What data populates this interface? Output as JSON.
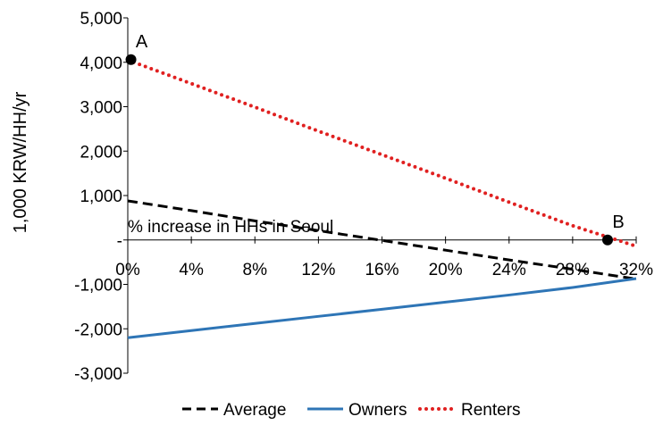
{
  "chart_data": {
    "type": "line",
    "ylabel": "1,000 KRW/HH/yr",
    "xlabel": "% increase in HHs in Seoul",
    "xlim": [
      0,
      32
    ],
    "ylim": [
      -3000,
      5000
    ],
    "x_ticks": [
      0,
      4,
      8,
      12,
      16,
      20,
      24,
      28,
      32
    ],
    "x_tick_labels": [
      "0%",
      "4%",
      "8%",
      "12%",
      "16%",
      "20%",
      "24%",
      "28%",
      "32%"
    ],
    "y_ticks": [
      5000,
      4000,
      3000,
      2000,
      1000,
      0,
      -1000,
      -2000,
      -3000
    ],
    "y_tick_labels": [
      "5,000",
      "4,000",
      "3,000",
      "2,000",
      "1,000",
      "-",
      "-1,000",
      "-2,000",
      "-3,000"
    ],
    "grid": false,
    "legend_position": "bottom",
    "colors": {
      "Average": "#000000",
      "Owners": "#2e75b6",
      "Renters": "#e02020"
    },
    "series": [
      {
        "name": "Average",
        "style": "dashed",
        "x": [
          0,
          4,
          8,
          12,
          16,
          20,
          24,
          28,
          32
        ],
        "values": [
          880,
          660,
          430,
          210,
          -10,
          -230,
          -450,
          -660,
          -880
        ]
      },
      {
        "name": "Owners",
        "style": "solid",
        "x": [
          0,
          4,
          8,
          12,
          16,
          20,
          24,
          28,
          32
        ],
        "values": [
          -2200,
          -2040,
          -1880,
          -1720,
          -1560,
          -1400,
          -1240,
          -1070,
          -870
        ]
      },
      {
        "name": "Renters",
        "style": "dotted",
        "x": [
          0,
          4,
          8,
          12,
          16,
          20,
          24,
          28,
          32
        ],
        "values": [
          4050,
          3520,
          2990,
          2450,
          1920,
          1390,
          850,
          320,
          -140
        ]
      }
    ],
    "annotations": [
      {
        "label": "A",
        "x": 0.2,
        "y": 4060
      },
      {
        "label": "B",
        "x": 30.2,
        "y": 0
      }
    ]
  }
}
